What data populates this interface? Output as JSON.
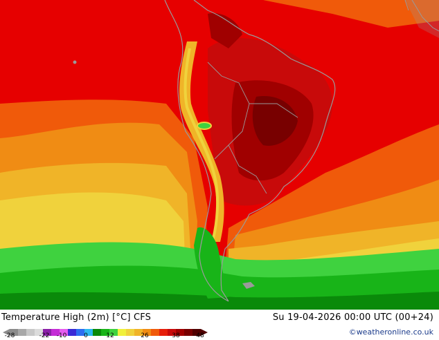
{
  "title": "Temperature High (2m) [°C] CFS",
  "datetime": "Su 19-04-2026 00:00 UTC (00+24)",
  "credit": "©weatheronline.co.uk",
  "legend": {
    "ticks": [
      "-28",
      "-22",
      "-10",
      "0",
      "12",
      "26",
      "38",
      "48"
    ],
    "colors": [
      "#8c8c8c",
      "#a8a8a8",
      "#c8c8c8",
      "#dcdcdc",
      "#8b1fa8",
      "#c42cd6",
      "#e65cf0",
      "#3a2ad6",
      "#2c6ef0",
      "#2cb8f0",
      "#0a8a0a",
      "#18b418",
      "#3fd23f",
      "#f0f03c",
      "#f0d23c",
      "#f0b428",
      "#f08c14",
      "#f05a0a",
      "#e61e0a",
      "#c80a0a",
      "#a00000",
      "#780000",
      "#500000"
    ]
  },
  "colors": {
    "red": "#e60000",
    "dark_red": "#8b0000",
    "orange": "#f08c14",
    "yellow": "#f0d23c",
    "green": "#18b418",
    "land_outline": "#9a9a9a"
  }
}
